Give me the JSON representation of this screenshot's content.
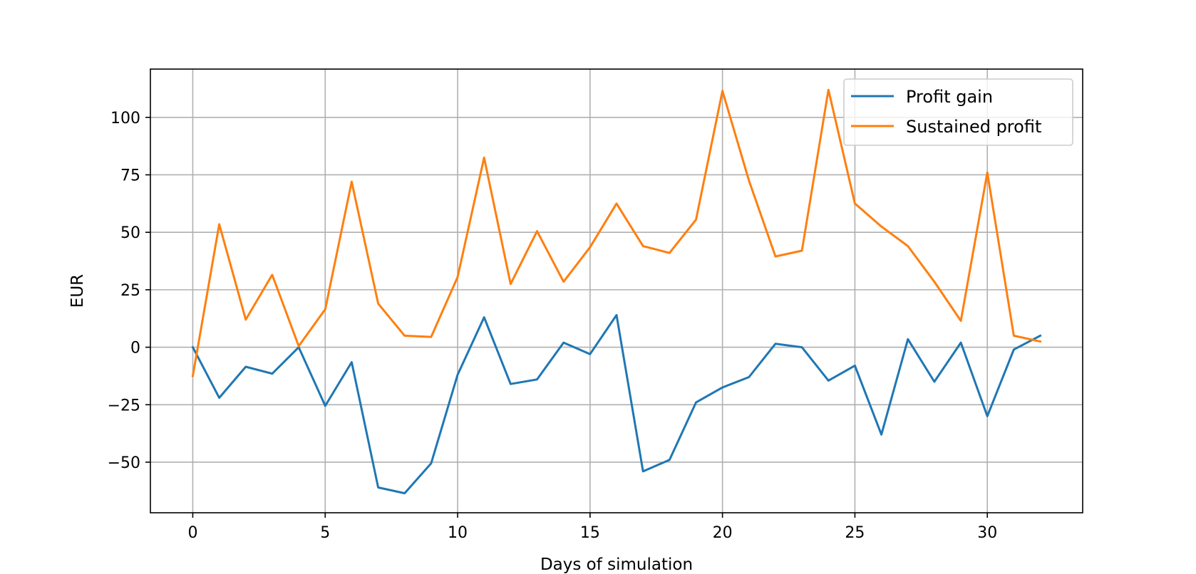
{
  "chart_data": {
    "type": "line",
    "title": "",
    "xlabel": "Days of simulation",
    "ylabel": "EUR",
    "xlim": [
      -1.6,
      33.6
    ],
    "ylim": [
      -72,
      121
    ],
    "grid": true,
    "legend_position": "top-right",
    "xticks": [
      0,
      5,
      10,
      15,
      20,
      25,
      30
    ],
    "xtick_labels": [
      "0",
      "5",
      "10",
      "15",
      "20",
      "25",
      "30"
    ],
    "yticks": [
      -50,
      -25,
      0,
      25,
      50,
      75,
      100
    ],
    "ytick_labels": [
      "−50",
      "−25",
      "0",
      "25",
      "50",
      "75",
      "100"
    ],
    "x": [
      0,
      1,
      2,
      3,
      4,
      5,
      6,
      7,
      8,
      9,
      10,
      11,
      12,
      13,
      14,
      15,
      16,
      17,
      18,
      19,
      20,
      21,
      22,
      23,
      24,
      25,
      26,
      27,
      28,
      29,
      30,
      31,
      32
    ],
    "series": [
      {
        "name": "Profit gain",
        "color": "#1f77b4",
        "values": [
          0,
          -22,
          -8.5,
          -11.5,
          0,
          -25.5,
          -6.5,
          -61,
          -63.5,
          -50.5,
          -12,
          13,
          -16,
          -14,
          2,
          -3,
          14,
          -54,
          -49,
          -24,
          -17.5,
          -13,
          1.5,
          0,
          -14.5,
          -8,
          -38,
          3.5,
          -15,
          2,
          -30,
          -1,
          5
        ]
      },
      {
        "name": "Sustained profit",
        "color": "#ff7f0e",
        "values": [
          -12.5,
          53.5,
          12,
          31.5,
          0.5,
          16.5,
          72,
          19,
          5,
          4.5,
          30.5,
          82.5,
          27.5,
          50.5,
          28.5,
          43.5,
          62.5,
          44,
          41,
          55.5,
          111.5,
          72.5,
          39.5,
          42,
          112,
          62.5,
          52.5,
          44,
          28.5,
          11.5,
          76,
          5,
          2.5
        ]
      }
    ]
  }
}
